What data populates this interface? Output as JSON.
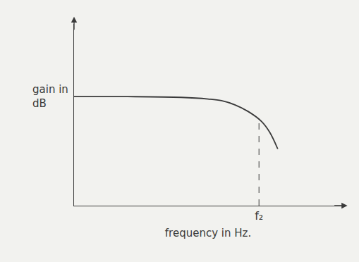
{
  "chart_data": {
    "type": "line",
    "x_label": "frequency in Hz.",
    "y_label": "gain in dB",
    "x": [
      0,
      2,
      4,
      5,
      5.5,
      6,
      6.5,
      7,
      7.3,
      7.6
    ],
    "values": [
      6.0,
      6.0,
      5.96,
      5.87,
      5.78,
      5.55,
      5.18,
      4.63,
      4.04,
      3.12
    ],
    "color": "#3a3a3a",
    "line_style": "solid",
    "xlim": [
      0,
      10
    ],
    "ylim": [
      0,
      10
    ],
    "xticks": [
      {
        "value": 6.9,
        "label": "f₂"
      }
    ],
    "yticks": [],
    "tick_labels": "x",
    "grid": false
  }
}
